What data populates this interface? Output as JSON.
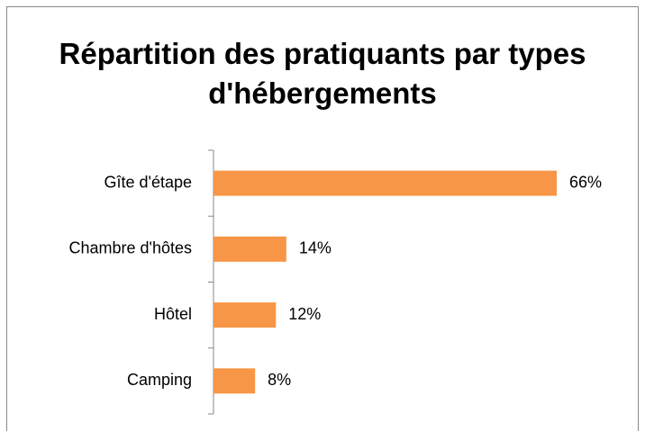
{
  "chart_data": {
    "type": "bar",
    "orientation": "horizontal",
    "title": "Répartition des pratiquants par types d'hébergements",
    "categories": [
      "Gîte d'étape",
      "Chambre d'hôtes",
      "Hôtel",
      "Camping"
    ],
    "values": [
      66,
      14,
      12,
      8
    ],
    "value_labels": [
      "66%",
      "14%",
      "12%",
      "8%"
    ],
    "color": "#f79646"
  }
}
